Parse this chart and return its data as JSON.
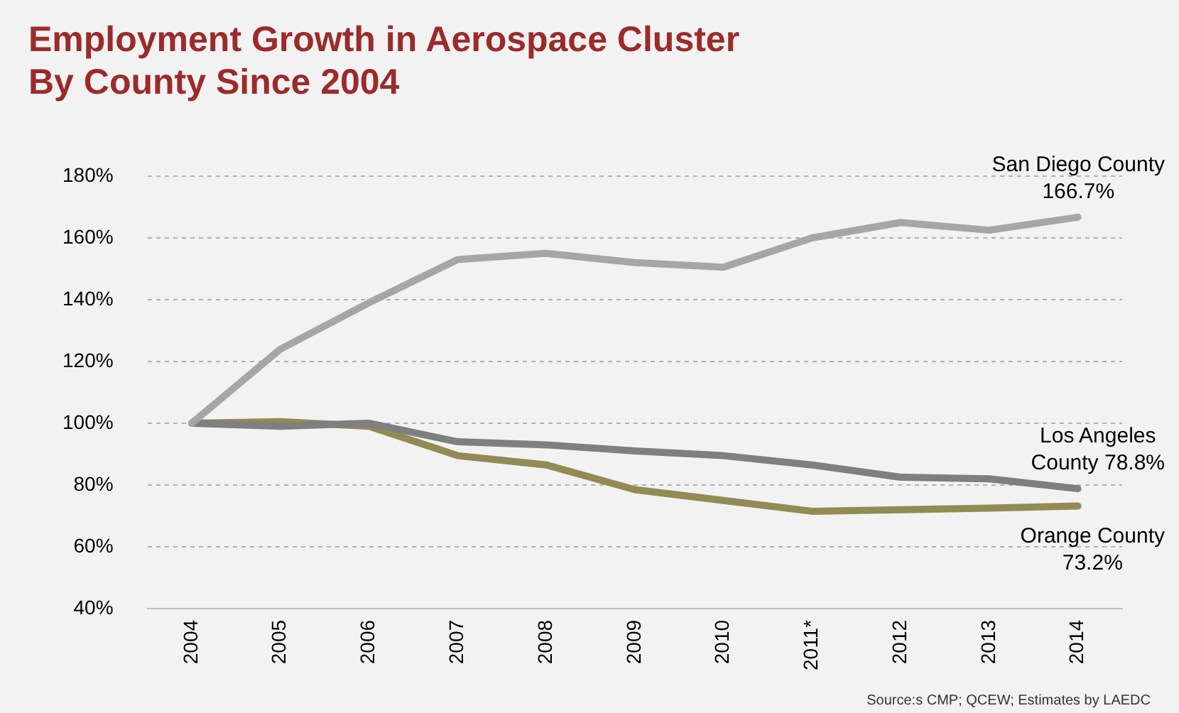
{
  "chart_data": {
    "type": "line",
    "title": "Employment Growth in Aerospace Cluster\nBy County Since 2004",
    "categories": [
      "2004",
      "2005",
      "2006",
      "2007",
      "2008",
      "2009",
      "2010",
      "2011*",
      "2012",
      "2013",
      "2014"
    ],
    "series": [
      {
        "color": "#a6a6a6",
        "values": [
          100,
          124,
          139,
          153,
          155,
          152,
          150.5,
          160,
          165,
          162.5,
          166.7
        ]
      },
      {
        "color": "#7f7f7f",
        "values": [
          100,
          99,
          100,
          94,
          93,
          91,
          89.5,
          86.5,
          82.5,
          82,
          78.8
        ]
      },
      {
        "color": "#948a54",
        "values": [
          100,
          100.5,
          99,
          89.5,
          86.5,
          78.5,
          75,
          71.5,
          72,
          72.5,
          73.2
        ]
      }
    ],
    "ylim": [
      40,
      180
    ],
    "yticks": [
      {
        "value": 40,
        "label": "40%"
      },
      {
        "value": 60,
        "label": "60%"
      },
      {
        "value": 80,
        "label": "80%"
      },
      {
        "value": 100,
        "label": "100%"
      },
      {
        "value": 120,
        "label": "120%"
      },
      {
        "value": 140,
        "label": "140%"
      },
      {
        "value": 160,
        "label": "160%"
      },
      {
        "value": 180,
        "label": "180%"
      }
    ],
    "grid": "y",
    "legend": false,
    "marker": "none",
    "line_style": "solid",
    "annotations": [
      {
        "text": "San Diego County\n166.7%",
        "x": "2014",
        "y": 166.7
      },
      {
        "text": "Los Angeles\nCounty 78.8%",
        "x": "2014",
        "y": 78.8
      },
      {
        "text": "Orange County\n73.2%",
        "x": "2014",
        "y": 73.2
      },
      "Source:s CMP; QCEW; Estimates by LAEDC"
    ]
  }
}
